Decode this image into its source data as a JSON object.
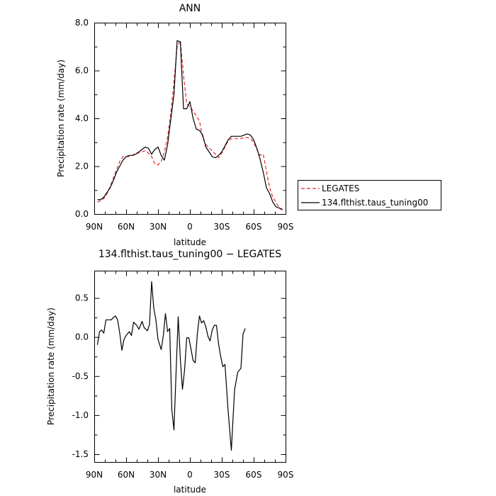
{
  "chart_data": [
    {
      "type": "line",
      "title": "ANN",
      "xlabel": "latitude",
      "ylabel": "Precipitation rate (mm/day)",
      "xlim": [
        90,
        -90
      ],
      "ylim": [
        0,
        8
      ],
      "xticks": [
        {
          "value": 90,
          "label": "90N"
        },
        {
          "value": 60,
          "label": "60N"
        },
        {
          "value": 30,
          "label": "30N"
        },
        {
          "value": 0,
          "label": "0"
        },
        {
          "value": -30,
          "label": "30S"
        },
        {
          "value": -60,
          "label": "60S"
        },
        {
          "value": -90,
          "label": "90S"
        }
      ],
      "yticks": [
        {
          "value": 0,
          "label": "0.0"
        },
        {
          "value": 2,
          "label": "2.0"
        },
        {
          "value": 4,
          "label": "4.0"
        },
        {
          "value": 6,
          "label": "6.0"
        },
        {
          "value": 8,
          "label": "8.0"
        }
      ],
      "legend_position": "right",
      "series": [
        {
          "name": "LEGATES",
          "color": "#e8272a",
          "dash": "dashed",
          "points": [
            [
              87,
              0.5
            ],
            [
              84,
              0.55
            ],
            [
              81,
              0.65
            ],
            [
              78,
              0.85
            ],
            [
              75,
              1.15
            ],
            [
              72,
              1.5
            ],
            [
              69,
              1.85
            ],
            [
              66,
              2.2
            ],
            [
              63,
              2.4
            ],
            [
              60,
              2.4
            ],
            [
              57,
              2.4
            ],
            [
              54,
              2.45
            ],
            [
              51,
              2.55
            ],
            [
              48,
              2.55
            ],
            [
              45,
              2.6
            ],
            [
              42,
              2.65
            ],
            [
              39,
              2.55
            ],
            [
              36,
              2.4
            ],
            [
              33,
              2.1
            ],
            [
              30,
              2.05
            ],
            [
              27,
              2.2
            ],
            [
              24,
              2.6
            ],
            [
              21,
              3.2
            ],
            [
              18,
              4.2
            ],
            [
              15,
              5.5
            ],
            [
              12,
              7.0
            ],
            [
              9,
              7.25
            ],
            [
              6,
              5.8
            ],
            [
              3,
              4.6
            ],
            [
              0,
              4.5
            ],
            [
              -3,
              4.3
            ],
            [
              -6,
              4.1
            ],
            [
              -9,
              3.9
            ],
            [
              -12,
              3.2
            ],
            [
              -15,
              2.9
            ],
            [
              -18,
              2.75
            ],
            [
              -21,
              2.65
            ],
            [
              -24,
              2.5
            ],
            [
              -27,
              2.35
            ],
            [
              -30,
              2.55
            ],
            [
              -33,
              2.8
            ],
            [
              -36,
              3.05
            ],
            [
              -39,
              3.15
            ],
            [
              -42,
              3.15
            ],
            [
              -45,
              3.15
            ],
            [
              -48,
              3.15
            ],
            [
              -51,
              3.2
            ],
            [
              -54,
              3.2
            ],
            [
              -57,
              3.15
            ],
            [
              -60,
              3.0
            ],
            [
              -63,
              2.7
            ],
            [
              -66,
              2.45
            ],
            [
              -69,
              2.5
            ],
            [
              -72,
              1.8
            ],
            [
              -75,
              1.1
            ],
            [
              -78,
              0.7
            ],
            [
              -81,
              0.5
            ],
            [
              -84,
              0.25
            ],
            [
              -87,
              0.15
            ]
          ]
        },
        {
          "name": "134.flthist.taus_tuning00",
          "color": "#000000",
          "dash": "solid",
          "points": [
            [
              87,
              0.6
            ],
            [
              84,
              0.6
            ],
            [
              81,
              0.7
            ],
            [
              78,
              0.9
            ],
            [
              75,
              1.1
            ],
            [
              72,
              1.4
            ],
            [
              69,
              1.75
            ],
            [
              66,
              2.0
            ],
            [
              63,
              2.25
            ],
            [
              60,
              2.4
            ],
            [
              57,
              2.45
            ],
            [
              54,
              2.45
            ],
            [
              51,
              2.5
            ],
            [
              48,
              2.6
            ],
            [
              45,
              2.7
            ],
            [
              42,
              2.8
            ],
            [
              39,
              2.75
            ],
            [
              36,
              2.5
            ],
            [
              33,
              2.7
            ],
            [
              30,
              2.8
            ],
            [
              27,
              2.45
            ],
            [
              24,
              2.25
            ],
            [
              21,
              2.9
            ],
            [
              18,
              3.95
            ],
            [
              15,
              5.0
            ],
            [
              12,
              7.25
            ],
            [
              9,
              7.2
            ],
            [
              6,
              4.4
            ],
            [
              3,
              4.4
            ],
            [
              0,
              4.7
            ],
            [
              -3,
              4.0
            ],
            [
              -6,
              3.55
            ],
            [
              -9,
              3.5
            ],
            [
              -12,
              3.3
            ],
            [
              -15,
              2.8
            ],
            [
              -18,
              2.6
            ],
            [
              -21,
              2.4
            ],
            [
              -24,
              2.35
            ],
            [
              -27,
              2.45
            ],
            [
              -30,
              2.6
            ],
            [
              -33,
              2.85
            ],
            [
              -36,
              3.1
            ],
            [
              -39,
              3.25
            ],
            [
              -42,
              3.25
            ],
            [
              -45,
              3.25
            ],
            [
              -48,
              3.25
            ],
            [
              -51,
              3.3
            ],
            [
              -54,
              3.35
            ],
            [
              -57,
              3.3
            ],
            [
              -60,
              3.1
            ],
            [
              -63,
              2.75
            ],
            [
              -66,
              2.3
            ],
            [
              -69,
              1.75
            ],
            [
              -72,
              1.1
            ],
            [
              -75,
              0.85
            ],
            [
              -78,
              0.5
            ],
            [
              -81,
              0.3
            ],
            [
              -84,
              0.25
            ],
            [
              -87,
              0.2
            ]
          ]
        }
      ]
    },
    {
      "type": "line",
      "title": "134.flthist.taus_tuning00 − LEGATES",
      "xlabel": "latitude",
      "ylabel": "Precipitation rate (mm/day)",
      "xlim": [
        90,
        -90
      ],
      "ylim": [
        -1.6,
        0.85
      ],
      "xticks": [
        {
          "value": 90,
          "label": "90N"
        },
        {
          "value": 60,
          "label": "60N"
        },
        {
          "value": 30,
          "label": "30N"
        },
        {
          "value": 0,
          "label": "0"
        },
        {
          "value": -30,
          "label": "30S"
        },
        {
          "value": -60,
          "label": "60S"
        },
        {
          "value": -90,
          "label": "90S"
        }
      ],
      "yticks": [
        {
          "value": 0.5,
          "label": "0.5"
        },
        {
          "value": 0.0,
          "label": "0.0"
        },
        {
          "value": -0.5,
          "label": "-0.5"
        },
        {
          "value": -1.0,
          "label": "-1.0"
        },
        {
          "value": -1.5,
          "label": "-1.5"
        }
      ],
      "series": [
        {
          "color": "#000000",
          "dash": "solid",
          "points": [
            [
              87,
              -0.1
            ],
            [
              85,
              0.07
            ],
            [
              83,
              0.09
            ],
            [
              81,
              0.05
            ],
            [
              79,
              0.22
            ],
            [
              76,
              0.22
            ],
            [
              74,
              0.22
            ],
            [
              72,
              0.25
            ],
            [
              70,
              0.27
            ],
            [
              68,
              0.22
            ],
            [
              66,
              0.05
            ],
            [
              64,
              -0.17
            ],
            [
              62,
              -0.03
            ],
            [
              60,
              0.02
            ],
            [
              57,
              0.07
            ],
            [
              55,
              0.02
            ],
            [
              53,
              0.19
            ],
            [
              50,
              0.15
            ],
            [
              48,
              0.1
            ],
            [
              45,
              0.2
            ],
            [
              43,
              0.12
            ],
            [
              40,
              0.08
            ],
            [
              38,
              0.16
            ],
            [
              36,
              0.71
            ],
            [
              34,
              0.37
            ],
            [
              32,
              0.22
            ],
            [
              30,
              -0.03
            ],
            [
              27,
              -0.16
            ],
            [
              25,
              0.02
            ],
            [
              23,
              0.3
            ],
            [
              21,
              0.07
            ],
            [
              19,
              0.11
            ],
            [
              17,
              -0.93
            ],
            [
              15,
              -1.19
            ],
            [
              13,
              -0.45
            ],
            [
              11,
              0.26
            ],
            [
              9,
              -0.28
            ],
            [
              7,
              -0.67
            ],
            [
              5,
              -0.42
            ],
            [
              3,
              -0.01
            ],
            [
              1,
              -0.01
            ],
            [
              -1,
              -0.15
            ],
            [
              -3,
              -0.3
            ],
            [
              -5,
              -0.33
            ],
            [
              -7,
              0.04
            ],
            [
              -9,
              0.27
            ],
            [
              -11,
              0.18
            ],
            [
              -13,
              0.21
            ],
            [
              -15,
              0.13
            ],
            [
              -17,
              0.01
            ],
            [
              -19,
              -0.05
            ],
            [
              -21,
              0.09
            ],
            [
              -23,
              0.15
            ],
            [
              -25,
              0.15
            ],
            [
              -27,
              -0.09
            ],
            [
              -29,
              -0.25
            ],
            [
              -31,
              -0.38
            ],
            [
              -33,
              -0.35
            ],
            [
              -36,
              -0.95
            ],
            [
              -39,
              -1.45
            ],
            [
              -42,
              -0.68
            ],
            [
              -45,
              -0.45
            ],
            [
              -48,
              -0.4
            ],
            [
              -50,
              0.04
            ],
            [
              -52,
              0.11
            ]
          ]
        }
      ]
    }
  ]
}
